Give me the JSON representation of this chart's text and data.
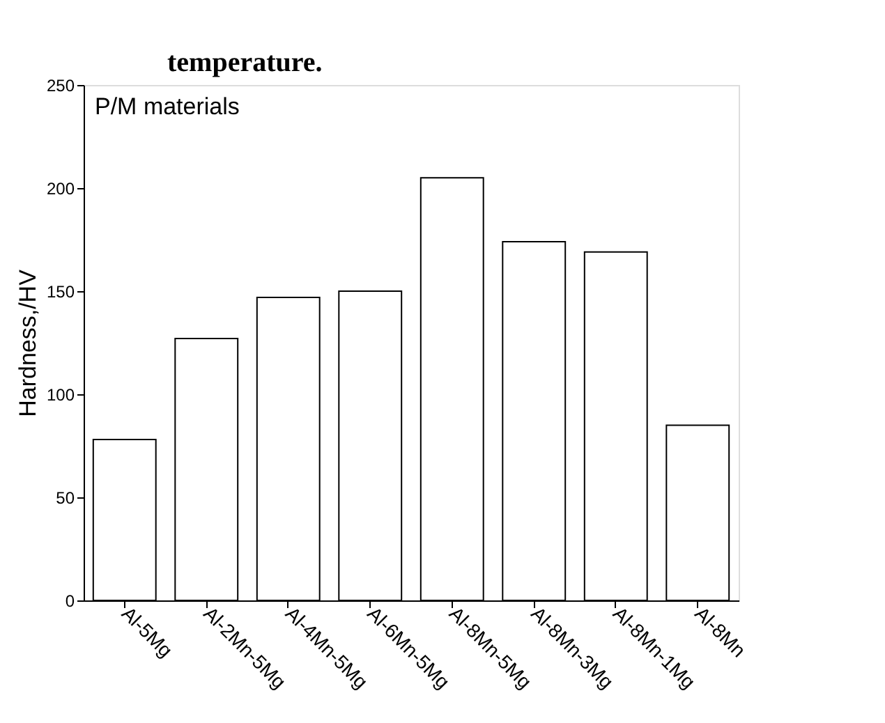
{
  "chart_data": {
    "type": "bar",
    "ylabel": "Hardness,/HV",
    "annotations": [
      "temperature.",
      "P/M materials"
    ],
    "categories": [
      "Al-5Mg",
      "Al-2Mn-5Mg",
      "Al-4Mn-5Mg",
      "Al-6Mn-5Mg",
      "Al-8Mn-5Mg",
      "Al-8Mn-3Mg",
      "Al-8Mn-1Mg",
      "Al-8Mn"
    ],
    "values": [
      78,
      127,
      147,
      150,
      205,
      174,
      169,
      85
    ],
    "color": "#ffffff",
    "ylim": [
      0,
      250
    ],
    "yticks": [
      0,
      50,
      100,
      150,
      200,
      250
    ],
    "grid": false
  }
}
